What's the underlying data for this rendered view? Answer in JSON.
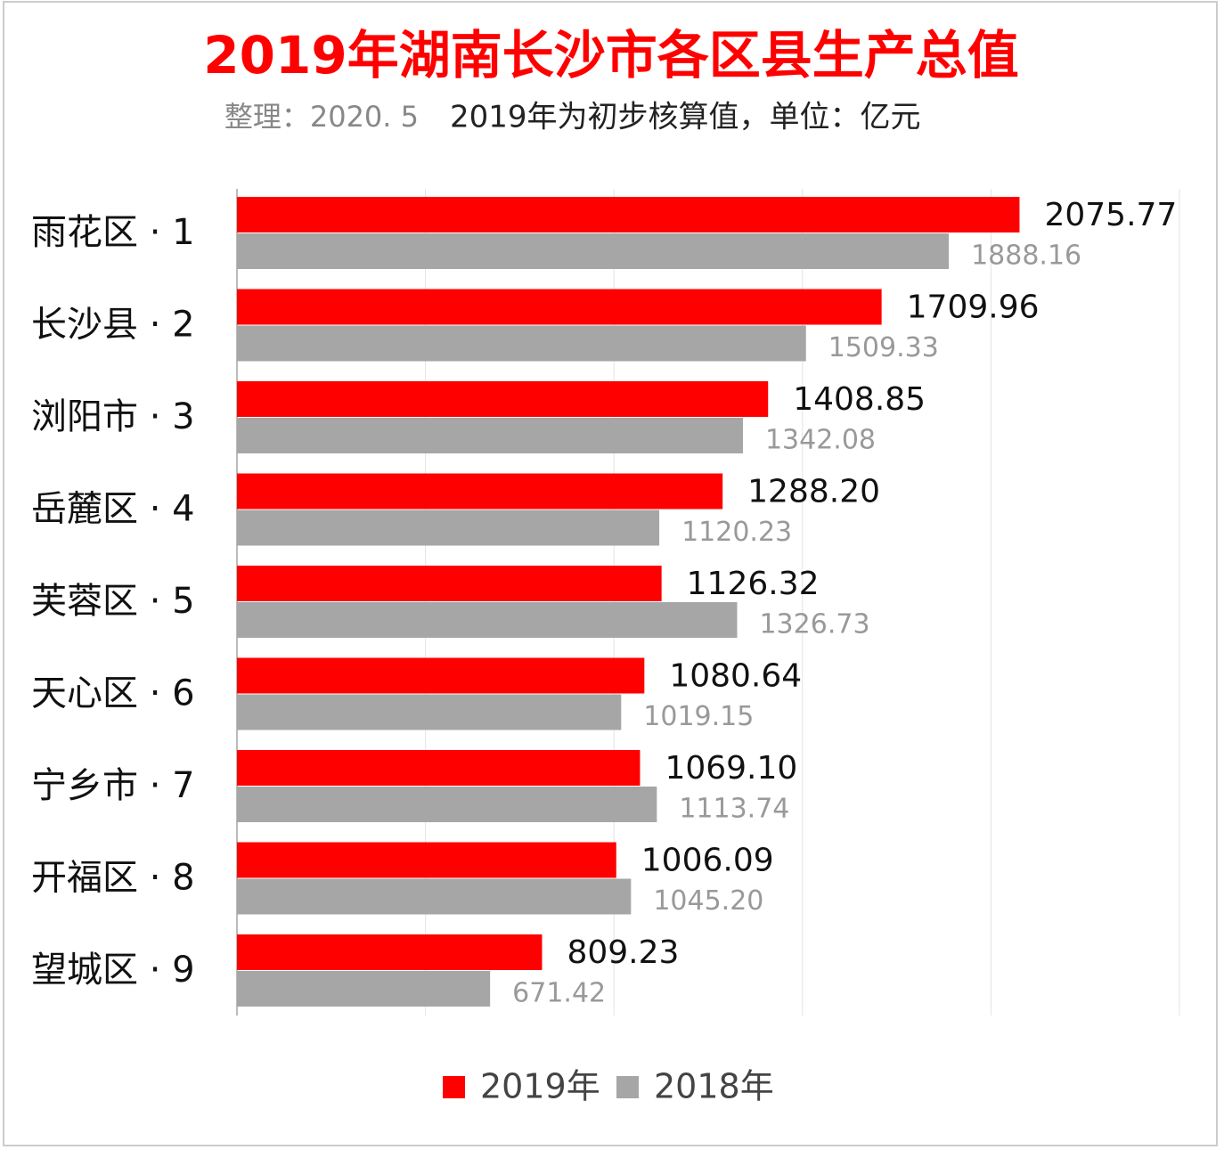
{
  "chart_data": {
    "type": "barh",
    "title": "2019年湖南长沙市各区县生产总值",
    "source": "整理：2020. 5",
    "subtitle": "2019年为初步核算值，单位：亿元",
    "categories": [
      "雨花区 · 1",
      "长沙县 · 2",
      "浏阳市 · 3",
      "岳麓区 · 4",
      "芙蓉区 · 5",
      "天心区 · 6",
      "宁乡市 · 7",
      "开福区 · 8",
      "望城区 · 9"
    ],
    "series": [
      {
        "name": "2019年",
        "color": "#ff0000",
        "values": [
          2075.77,
          1709.96,
          1408.85,
          1288.2,
          1126.32,
          1080.64,
          1069.1,
          1006.09,
          809.23
        ],
        "value_labels": [
          "2075.77",
          "1709.96",
          "1408.85",
          "1288.20",
          "1126.32",
          "1080.64",
          "1069.10",
          "1006.09",
          "809.23"
        ]
      },
      {
        "name": "2018年",
        "color": "#a6a6a6",
        "values": [
          1888.16,
          1509.33,
          1342.08,
          1120.23,
          1326.73,
          1019.15,
          1113.74,
          1045.2,
          671.42
        ],
        "value_labels": [
          "1888.16",
          "1509.33",
          "1342.08",
          "1120.23",
          "1326.73",
          "1019.15",
          "1113.74",
          "1045.20",
          "671.42"
        ]
      }
    ],
    "xlim": [
      0,
      2500
    ],
    "xticks": [
      0,
      500,
      1000,
      1500,
      2000,
      2500
    ],
    "grid": true,
    "legend": "bottom"
  }
}
